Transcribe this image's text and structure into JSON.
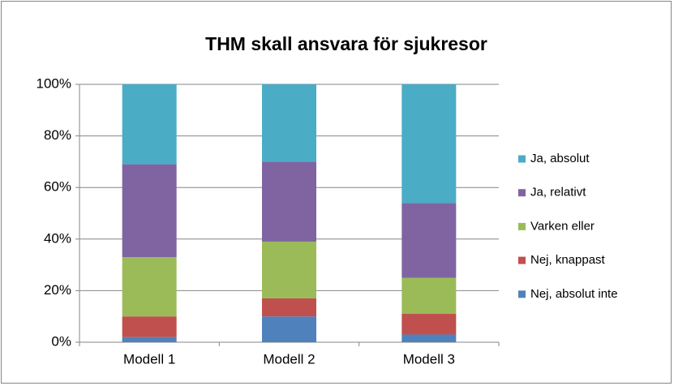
{
  "chart_data": {
    "type": "stacked_bar",
    "title": "THM skall ansvara för sjukresor",
    "categories": [
      "Modell 1",
      "Modell 2",
      "Modell 3"
    ],
    "series": [
      {
        "name": "Nej, absolut inte",
        "color": "#4f81bd",
        "values": [
          2,
          10,
          3
        ]
      },
      {
        "name": "Nej, knappast",
        "color": "#c0504d",
        "values": [
          8,
          7,
          8
        ]
      },
      {
        "name": "Varken eller",
        "color": "#9bbb59",
        "values": [
          23,
          22,
          14
        ]
      },
      {
        "name": "Ja, relativt",
        "color": "#8064a2",
        "values": [
          36,
          31,
          29
        ]
      },
      {
        "name": "Ja, absolut",
        "color": "#4bacc6",
        "values": [
          31,
          30,
          46
        ]
      }
    ],
    "ylim": [
      0,
      100
    ],
    "yticks": [
      {
        "value": 0,
        "label": "0%"
      },
      {
        "value": 20,
        "label": "20%"
      },
      {
        "value": 40,
        "label": "40%"
      },
      {
        "value": 60,
        "label": "60%"
      },
      {
        "value": 80,
        "label": "80%"
      },
      {
        "value": 100,
        "label": "100%"
      }
    ],
    "grid": true,
    "legend": "right"
  }
}
